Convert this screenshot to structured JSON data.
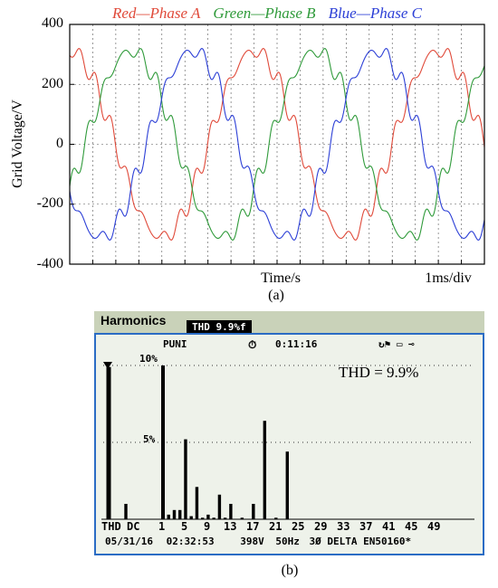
{
  "chart_data": [
    {
      "type": "line",
      "title": "",
      "legend": [
        {
          "label": "Red—Phase A",
          "color": "#e04a3a"
        },
        {
          "label": "Green—Phase B",
          "color": "#2f9a3a"
        },
        {
          "label": "Blue—Phase C",
          "color": "#2c3fd6"
        }
      ],
      "ylabel": "Grid Voltage/V",
      "xlabel": "Time/s",
      "x_scale_note": "1ms/div",
      "ylim": [
        -400,
        400
      ],
      "y_ticks": [
        "400",
        "200",
        "0",
        "-200",
        "-400"
      ],
      "xlim_ms": [
        0,
        45
      ],
      "grid": true,
      "amplitude_v": 310,
      "frequency_hz": 50,
      "harmonic_ripple_v": 25,
      "series": [
        {
          "name": "Red—Phase A",
          "phase_deg": 90
        },
        {
          "name": "Green—Phase B",
          "phase_deg": -30
        },
        {
          "name": "Blue—Phase C",
          "phase_deg": 210
        }
      ],
      "caption": "(a)"
    },
    {
      "type": "bar",
      "header_title": "Harmonics",
      "thd_chip": "THD   9.9%f",
      "status": {
        "mode": "PUNI",
        "timer": "0:11:16",
        "timer_icon": "clock-icon",
        "right_icons": "↻⚑ ▭ ⊸"
      },
      "annotation": "THD = 9.9%",
      "y_ticks": [
        "10%",
        "5%"
      ],
      "ylim": [
        0,
        10
      ],
      "categories": [
        "THD",
        "DC",
        "1",
        "2",
        "3",
        "4",
        "5",
        "6",
        "7",
        "8",
        "9",
        "10",
        "11",
        "12",
        "13",
        "14",
        "15",
        "16",
        "17",
        "18",
        "19",
        "20",
        "21",
        "22",
        "23",
        "24",
        "25",
        "26",
        "27",
        "28",
        "29",
        "30",
        "31",
        "32",
        "33",
        "34",
        "35",
        "36",
        "37",
        "38",
        "39",
        "40",
        "41",
        "42",
        "43",
        "44",
        "45",
        "46",
        "47",
        "48",
        "49",
        "50"
      ],
      "x_tick_labels": [
        "THD",
        "DC",
        "1",
        "5",
        "9",
        "13",
        "17",
        "21",
        "25",
        "29",
        "33",
        "37",
        "41",
        "45",
        "49"
      ],
      "values": [
        9.9,
        1.0,
        10,
        0.3,
        0.6,
        0.6,
        5.2,
        0.2,
        2.1,
        0.1,
        0.3,
        0.1,
        1.6,
        0.1,
        1.0,
        0,
        0.1,
        0,
        1.0,
        0,
        6.4,
        0,
        0.1,
        0,
        4.4,
        0,
        0,
        0,
        0,
        0,
        0,
        0,
        0,
        0,
        0,
        0,
        0,
        0,
        0,
        0,
        0,
        0,
        0,
        0,
        0,
        0,
        0,
        0,
        0,
        0,
        0,
        0
      ],
      "footer": {
        "date": "05/31/16",
        "time": "02:32:53",
        "voltage": "398V",
        "freq": "50Hz",
        "phase": "3Ø",
        "config": "DELTA",
        "standard": "EN50160*"
      },
      "caption": "(b)"
    }
  ]
}
